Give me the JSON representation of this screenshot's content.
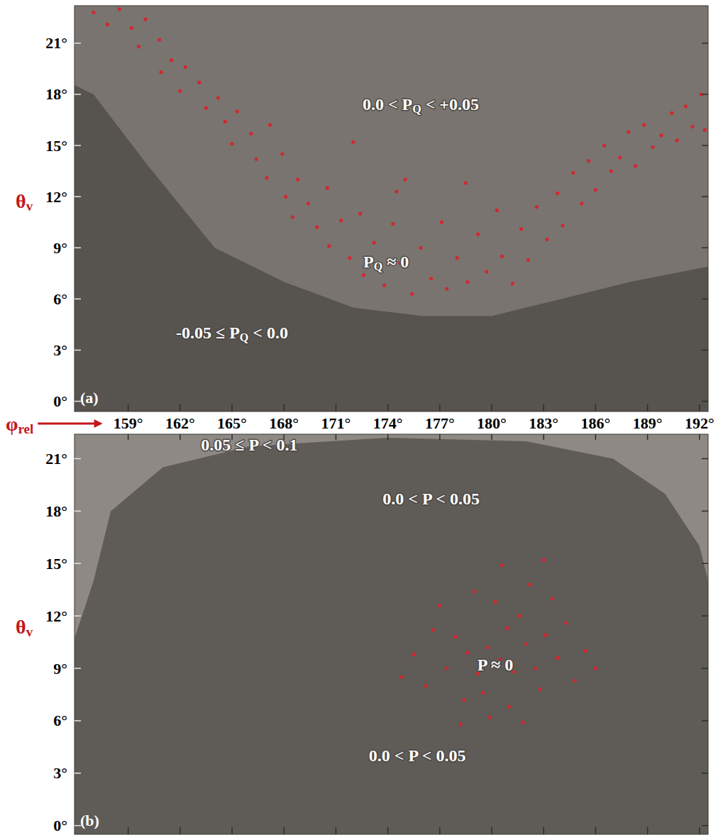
{
  "chart_data": [
    {
      "type": "scatter",
      "title": "(a)",
      "x_label": [
        "φ",
        "rel"
      ],
      "y_label": [
        "θ",
        "v"
      ],
      "xlim": [
        155.9,
        192.5
      ],
      "ylim": [
        -0.6,
        23.2
      ],
      "xticks": [
        {
          "value": 159,
          "label": "159°"
        },
        {
          "value": 162,
          "label": "162°"
        },
        {
          "value": 165,
          "label": "165°"
        },
        {
          "value": 168,
          "label": "168°"
        },
        {
          "value": 171,
          "label": "171°"
        },
        {
          "value": 174,
          "label": "174°"
        },
        {
          "value": 177,
          "label": "177°"
        },
        {
          "value": 180,
          "label": "180°"
        },
        {
          "value": 183,
          "label": "183°"
        },
        {
          "value": 186,
          "label": "186°"
        },
        {
          "value": 189,
          "label": "189°"
        },
        {
          "value": 192,
          "label": "192°"
        }
      ],
      "yticks": [
        {
          "value": 0,
          "label": "0°"
        },
        {
          "value": 3,
          "label": "3°"
        },
        {
          "value": 6,
          "label": "6°"
        },
        {
          "value": 9,
          "label": "9°"
        },
        {
          "value": 12,
          "label": "12°"
        },
        {
          "value": 15,
          "label": "15°"
        },
        {
          "value": 18,
          "label": "18°"
        },
        {
          "value": 21,
          "label": "21°"
        }
      ],
      "tick_labels": true,
      "color": "#d8232a",
      "marker": "circle",
      "x": [
        157.0,
        157.8,
        158.5,
        159.2,
        160.0,
        159.6,
        160.8,
        161.5,
        160.9,
        162.3,
        162.0,
        163.1,
        163.5,
        164.2,
        164.6,
        165.3,
        165.0,
        166.1,
        166.4,
        167.2,
        167.0,
        167.9,
        168.1,
        168.8,
        168.5,
        169.4,
        169.9,
        170.5,
        170.6,
        171.3,
        171.8,
        172.4,
        172.6,
        173.2,
        173.8,
        174.3,
        174.7,
        175.4,
        175.9,
        176.5,
        177.1,
        177.4,
        178.0,
        178.6,
        179.2,
        179.7,
        180.3,
        180.6,
        181.2,
        181.7,
        182.1,
        182.6,
        183.2,
        183.8,
        184.1,
        184.7,
        185.2,
        185.6,
        186.0,
        186.5,
        186.9,
        187.4,
        187.9,
        188.3,
        188.8,
        189.3,
        189.8,
        190.4,
        190.7,
        191.2,
        191.6,
        192.1,
        192.3,
        172.0,
        175.0,
        178.5,
        174.5
      ],
      "values": [
        22.8,
        22.1,
        23.0,
        21.9,
        22.4,
        20.8,
        21.2,
        20.0,
        19.3,
        19.6,
        18.2,
        18.7,
        17.2,
        17.8,
        16.4,
        17.0,
        15.1,
        15.7,
        14.2,
        16.2,
        13.1,
        14.5,
        12.0,
        13.0,
        10.8,
        11.6,
        10.2,
        12.5,
        9.1,
        10.6,
        8.4,
        11.0,
        7.4,
        9.3,
        6.8,
        10.4,
        8.1,
        6.3,
        9.0,
        7.2,
        10.5,
        6.6,
        8.4,
        7.0,
        9.8,
        7.6,
        11.2,
        8.5,
        6.9,
        10.1,
        8.3,
        11.4,
        9.5,
        12.2,
        10.3,
        13.4,
        11.6,
        14.1,
        12.4,
        15.0,
        13.5,
        14.3,
        15.8,
        13.8,
        16.2,
        14.9,
        15.6,
        16.9,
        15.3,
        17.3,
        16.1,
        18.0,
        15.9,
        15.2,
        13.0,
        12.8,
        12.3
      ],
      "regions": [
        {
          "color": "#57534f",
          "x": [
            155,
            157,
            160,
            164,
            168,
            172,
            176,
            180,
            184,
            188,
            193,
            193,
            155
          ],
          "y": [
            19,
            18,
            14,
            9,
            7,
            5.5,
            5,
            5,
            6,
            7,
            8,
            -1,
            -1
          ]
        }
      ],
      "annotations": [
        {
          "text": [
            "0.0 < P",
            "Q",
            " < +0.05"
          ],
          "x": 175.9,
          "y": 17.4
        },
        {
          "text": [
            "P",
            "Q",
            " ≈ 0"
          ],
          "x": 173.9,
          "y": 8.2
        },
        {
          "text": [
            "-0.05 ≤ P",
            "Q",
            " < 0.0"
          ],
          "x": 165.0,
          "y": 4.0
        }
      ]
    },
    {
      "type": "scatter",
      "title": "(b)",
      "y_label": [
        "θ",
        "v"
      ],
      "xlim": [
        155.9,
        192.5
      ],
      "ylim": [
        -0.5,
        22.4
      ],
      "xticks": [
        159,
        162,
        165,
        168,
        171,
        174,
        177,
        180,
        183,
        186,
        189,
        192
      ],
      "yticks": [
        {
          "value": 0,
          "label": "0°"
        },
        {
          "value": 3,
          "label": "3°"
        },
        {
          "value": 6,
          "label": "6°"
        },
        {
          "value": 9,
          "label": "9°"
        },
        {
          "value": 12,
          "label": "12°"
        },
        {
          "value": 15,
          "label": "15°"
        },
        {
          "value": 18,
          "label": "18°"
        },
        {
          "value": 21,
          "label": "21°"
        }
      ],
      "tick_labels": "y",
      "color": "#d8232a",
      "marker": "circle",
      "x": [
        180.5,
        179.8,
        181.3,
        182.0,
        179.2,
        180.9,
        178.6,
        182.5,
        181.6,
        179.5,
        183.1,
        177.9,
        180.2,
        182.8,
        178.4,
        183.8,
        181.0,
        177.4,
        184.3,
        179.0,
        182.2,
        176.6,
        184.8,
        180.6,
        176.2,
        185.4,
        178.2,
        183.5,
        175.5,
        181.8,
        186.0,
        177.0,
        179.9,
        174.8,
        183.0
      ],
      "values": [
        9.5,
        10.2,
        8.8,
        10.4,
        8.7,
        11.3,
        9.9,
        9.0,
        12.0,
        7.6,
        10.9,
        10.8,
        12.8,
        7.8,
        7.2,
        9.6,
        6.8,
        9.0,
        11.6,
        13.4,
        13.8,
        11.2,
        8.3,
        14.9,
        8.0,
        10.0,
        5.8,
        13.0,
        9.8,
        5.9,
        9.0,
        12.6,
        6.2,
        8.5,
        15.2
      ],
      "regions": [
        {
          "color": "#5f5b57",
          "x": [
            155,
            157,
            158,
            161,
            166,
            174,
            182,
            187,
            190,
            192,
            193,
            193,
            155
          ],
          "y": [
            8,
            14,
            18,
            20.5,
            21.7,
            22.2,
            22,
            21,
            19,
            16,
            12,
            -1,
            -1
          ]
        }
      ],
      "annotations": [
        {
          "text": [
            "0.05 ≤ P < 0.1"
          ],
          "x": 166.0,
          "y": 21.8
        },
        {
          "text": [
            "0.0 < P < 0.05"
          ],
          "x": 176.5,
          "y": 18.7
        },
        {
          "text": [
            "P ≈ 0"
          ],
          "x": 180.2,
          "y": 9.2
        },
        {
          "text": [
            "0.0 < P < 0.05"
          ],
          "x": 175.7,
          "y": 4.0
        }
      ]
    }
  ]
}
